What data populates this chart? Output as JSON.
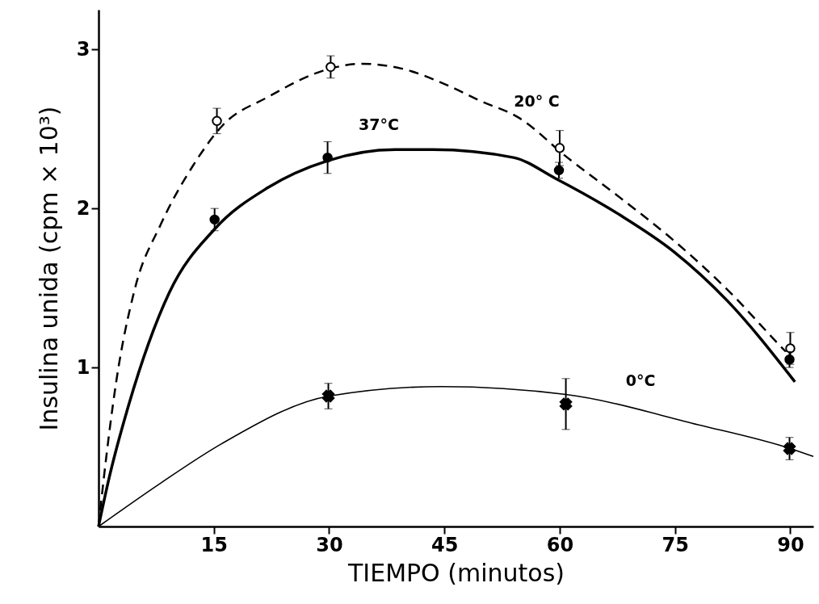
{
  "chart_data": {
    "type": "line",
    "xlabel": "TIEMPO (minutos)",
    "ylabel": "Insulina unida (cpm × 10³)",
    "xlim": [
      0,
      93
    ],
    "xticks": [
      15,
      30,
      45,
      60,
      75,
      90
    ],
    "ylim": [
      0,
      3.25
    ],
    "yticks": [
      1,
      2,
      3
    ],
    "grid": false,
    "series": [
      {
        "color": "#000000",
        "line_style": "dashed",
        "marker": "none",
        "x": [
          0,
          0.7,
          2.3,
          4.7,
          8.1,
          12.3,
          16.1,
          22,
          30.2,
          34.2,
          39.4,
          45.6,
          49.5,
          54.7,
          61,
          67.8,
          74.8,
          81.8,
          88.6,
          89.4
        ],
        "values": [
          0,
          0.31,
          0.91,
          1.49,
          1.9,
          2.27,
          2.52,
          2.7,
          2.88,
          2.91,
          2.88,
          2.77,
          2.68,
          2.57,
          2.32,
          2.07,
          1.8,
          1.49,
          1.14,
          1.1
        ]
      },
      {
        "color": "#000000",
        "line_style": "solid",
        "marker": "none",
        "x": [
          0,
          1.4,
          3.9,
          9.2,
          15.1,
          22,
          29.8,
          38.6,
          43.5,
          54,
          59.4,
          67.8,
          74.8,
          81.8,
          90.6
        ],
        "values": [
          0,
          0.31,
          0.76,
          1.47,
          1.87,
          2.13,
          2.3,
          2.37,
          2.37,
          2.32,
          2.19,
          1.96,
          1.73,
          1.42,
          0.91
        ]
      },
      {
        "color": "#000000",
        "line_style": "solid",
        "marker": "none",
        "x": [
          0,
          8,
          16,
          30,
          44.6,
          60.8,
          78,
          90,
          93
        ],
        "values": [
          0,
          0.27,
          0.52,
          0.82,
          0.88,
          0.83,
          0.64,
          0.49,
          0.44
        ]
      },
      {
        "type": "scatter",
        "color": "#ffffff",
        "marker": "circle",
        "x": [
          15.4,
          30.2,
          60,
          90
        ],
        "values": [
          2.55,
          2.89,
          2.38,
          1.12
        ],
        "errors": [
          0.08,
          0.07,
          0.11,
          0.1
        ]
      },
      {
        "type": "scatter",
        "color": "#000000",
        "marker": "circle",
        "x": [
          15.1,
          29.8,
          59.9,
          89.9
        ],
        "values": [
          1.93,
          2.32,
          2.24,
          1.05
        ],
        "errors": [
          0.07,
          0.1,
          0.05,
          0.05
        ]
      },
      {
        "type": "scatter",
        "color": "#000000",
        "marker": "cross",
        "x": [
          29.9,
          60.8,
          89.9
        ],
        "values": [
          0.82,
          0.77,
          0.49
        ],
        "errors": [
          0.08,
          0.16,
          0.07
        ]
      }
    ],
    "annotations": [
      {
        "text": "20° C",
        "x": 54.7,
        "y": 2.57
      },
      {
        "text": "37°C",
        "x": 39.4,
        "y": 2.37
      },
      {
        "text": "0°C",
        "x": 67.8,
        "y": 0.77
      }
    ]
  }
}
